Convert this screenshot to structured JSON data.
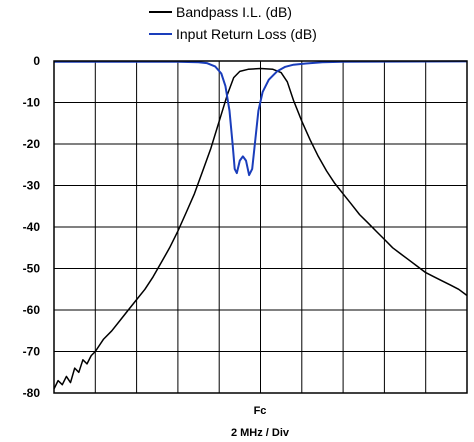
{
  "chart_data": {
    "type": "line",
    "legend": {
      "position": "top",
      "entries": [
        {
          "label": "Bandpass I.L. (dB)",
          "color": "#000000"
        },
        {
          "label": "Input Return Loss (dB)",
          "color": "#1a3dbb"
        }
      ]
    },
    "x_axis": {
      "center_label": "Fc",
      "label": "2 MHz / Div",
      "unit": "MHz from Fc",
      "range": [
        -10,
        10
      ],
      "grid_divisions": 10
    },
    "y_axis": {
      "ticks": [
        "0",
        "-10",
        "-20",
        "-30",
        "-40",
        "-50",
        "-60",
        "-70",
        "-80"
      ],
      "range": [
        -80,
        0
      ],
      "grid": true
    },
    "series": [
      {
        "name": "Bandpass I.L. (dB)",
        "color": "#000000",
        "points": [
          [
            -10,
            -79
          ],
          [
            -9.8,
            -77
          ],
          [
            -9.6,
            -78
          ],
          [
            -9.4,
            -76
          ],
          [
            -9.2,
            -77.5
          ],
          [
            -9.0,
            -74
          ],
          [
            -8.8,
            -75
          ],
          [
            -8.6,
            -72
          ],
          [
            -8.4,
            -73
          ],
          [
            -8.2,
            -71
          ],
          [
            -8.0,
            -70
          ],
          [
            -7.6,
            -67
          ],
          [
            -7.2,
            -65
          ],
          [
            -6.8,
            -62.5
          ],
          [
            -6.4,
            -60
          ],
          [
            -6.0,
            -57.5
          ],
          [
            -5.6,
            -55
          ],
          [
            -5.2,
            -52
          ],
          [
            -4.8,
            -48.5
          ],
          [
            -4.4,
            -45
          ],
          [
            -4.0,
            -41
          ],
          [
            -3.6,
            -36.5
          ],
          [
            -3.2,
            -32
          ],
          [
            -2.8,
            -26.5
          ],
          [
            -2.4,
            -21
          ],
          [
            -2.0,
            -14.5
          ],
          [
            -1.6,
            -8
          ],
          [
            -1.3,
            -4
          ],
          [
            -1.0,
            -2.5
          ],
          [
            -0.6,
            -2
          ],
          [
            0,
            -1.8
          ],
          [
            0.6,
            -2
          ],
          [
            1.0,
            -2.8
          ],
          [
            1.3,
            -5
          ],
          [
            1.6,
            -9.5
          ],
          [
            2.0,
            -14.5
          ],
          [
            2.4,
            -19
          ],
          [
            2.8,
            -23
          ],
          [
            3.2,
            -26.5
          ],
          [
            3.6,
            -29.5
          ],
          [
            4.0,
            -32
          ],
          [
            4.4,
            -34.5
          ],
          [
            4.8,
            -37
          ],
          [
            5.2,
            -39
          ],
          [
            5.6,
            -41
          ],
          [
            6.0,
            -43
          ],
          [
            6.4,
            -45
          ],
          [
            6.8,
            -46.5
          ],
          [
            7.2,
            -48
          ],
          [
            7.6,
            -49.5
          ],
          [
            8.0,
            -51
          ],
          [
            8.4,
            -52
          ],
          [
            8.8,
            -53
          ],
          [
            9.2,
            -54
          ],
          [
            9.6,
            -55
          ],
          [
            10,
            -56.5
          ]
        ]
      },
      {
        "name": "Input Return Loss (dB)",
        "color": "#1a3dbb",
        "points": [
          [
            -10,
            -0.2
          ],
          [
            -4.0,
            -0.2
          ],
          [
            -3.0,
            -0.3
          ],
          [
            -2.6,
            -0.5
          ],
          [
            -2.2,
            -1.3
          ],
          [
            -1.9,
            -3
          ],
          [
            -1.7,
            -6
          ],
          [
            -1.5,
            -12
          ],
          [
            -1.35,
            -20
          ],
          [
            -1.25,
            -26
          ],
          [
            -1.15,
            -27
          ],
          [
            -1.0,
            -24
          ],
          [
            -0.85,
            -23
          ],
          [
            -0.7,
            -24
          ],
          [
            -0.55,
            -27.5
          ],
          [
            -0.4,
            -26
          ],
          [
            -0.25,
            -19
          ],
          [
            -0.1,
            -12
          ],
          [
            0.1,
            -7.5
          ],
          [
            0.4,
            -4.5
          ],
          [
            0.8,
            -2.5
          ],
          [
            1.2,
            -1.4
          ],
          [
            1.6,
            -0.9
          ],
          [
            2.2,
            -0.6
          ],
          [
            3.0,
            -0.3
          ],
          [
            4.0,
            -0.2
          ],
          [
            10,
            -0.1
          ]
        ]
      }
    ]
  }
}
